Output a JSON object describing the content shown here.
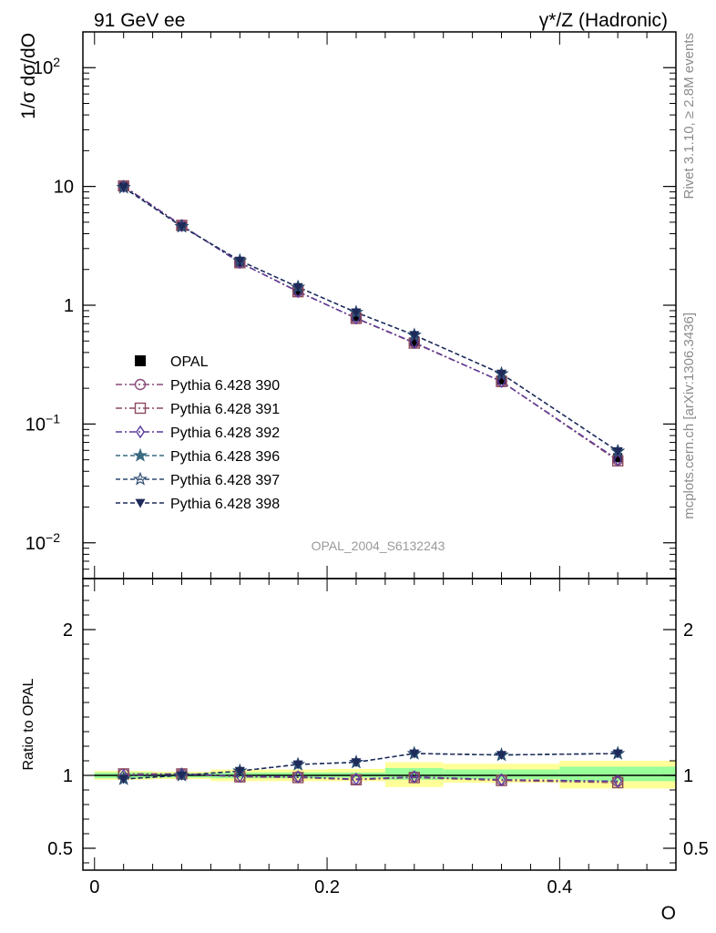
{
  "header": {
    "left": "91 GeV ee",
    "right": "γ*/Z (Hadronic)"
  },
  "side_labels": {
    "rivet": "Rivet 3.1.10, ≥ 2.8M events",
    "mcplots": "mcplots.cern.ch [arXiv:1306.3436]"
  },
  "watermark": "OPAL_2004_S6132243",
  "chart_data": [
    {
      "type": "line",
      "panel": "main",
      "ylabel": "1/σ dσ/dO",
      "yscale": "log",
      "ylim": [
        0.005,
        200
      ],
      "xlim": [
        -0.01,
        0.5
      ],
      "yticks": [
        {
          "value": 0.01,
          "base": "10",
          "exp": "−2"
        },
        {
          "value": 0.1,
          "base": "10",
          "exp": "−1"
        },
        {
          "value": 1,
          "base": "1",
          "exp": ""
        },
        {
          "value": 10,
          "base": "10",
          "exp": ""
        },
        {
          "value": 100,
          "base": "10",
          "exp": "2"
        }
      ],
      "x": [
        0.025,
        0.075,
        0.125,
        0.175,
        0.225,
        0.275,
        0.35,
        0.45
      ],
      "data_series": {
        "name": "OPAL",
        "values": [
          10.0,
          4.6,
          2.3,
          1.32,
          0.8,
          0.49,
          0.235,
          0.052
        ]
      },
      "legend": "left",
      "series": [
        {
          "name": "Pythia 6.428 390",
          "marker": "circle-open",
          "color": "#8b4a7a",
          "dash": "dashdot",
          "values": [
            10.1,
            4.7,
            2.28,
            1.31,
            0.775,
            0.485,
            0.228,
            0.05
          ]
        },
        {
          "name": "Pythia 6.428 391",
          "marker": "square-open",
          "color": "#8b4a5e",
          "dash": "dashdot",
          "values": [
            10.1,
            4.7,
            2.28,
            1.3,
            0.775,
            0.48,
            0.228,
            0.049
          ]
        },
        {
          "name": "Pythia 6.428 392",
          "marker": "diamond-open",
          "color": "#5b3a9e",
          "dash": "dashdot",
          "values": [
            10.0,
            4.68,
            2.29,
            1.3,
            0.78,
            0.485,
            0.228,
            0.05
          ]
        },
        {
          "name": "Pythia 6.428 396",
          "marker": "star-filled",
          "color": "#3a6a80",
          "dash": "dashed",
          "values": [
            9.8,
            4.6,
            2.37,
            1.42,
            0.87,
            0.56,
            0.265,
            0.059
          ]
        },
        {
          "name": "Pythia 6.428 397",
          "marker": "star-open",
          "color": "#2b4a70",
          "dash": "dashed",
          "values": [
            9.8,
            4.6,
            2.37,
            1.42,
            0.87,
            0.56,
            0.265,
            0.059
          ]
        },
        {
          "name": "Pythia 6.428 398",
          "marker": "triangle-down-filled",
          "color": "#1e2a5a",
          "dash": "dashed",
          "values": [
            9.8,
            4.6,
            2.37,
            1.42,
            0.87,
            0.56,
            0.265,
            0.059
          ]
        }
      ]
    },
    {
      "type": "line",
      "panel": "ratio",
      "ylabel": "Ratio to OPAL",
      "xlabel": "O",
      "ylim": [
        0.35,
        2.35
      ],
      "yticks": [
        0.5,
        1,
        2
      ],
      "ytick_labels": [
        "0.5",
        "1",
        "2"
      ],
      "xticks": [
        0,
        0.2,
        0.4
      ],
      "xtick_labels": [
        "0",
        "0.2",
        "0.4"
      ],
      "bands": [
        {
          "x0": 0.0,
          "x1": 0.05,
          "green": [
            0.98,
            1.02
          ],
          "yellow": [
            0.97,
            1.03
          ]
        },
        {
          "x0": 0.05,
          "x1": 0.1,
          "green": [
            0.985,
            1.015
          ],
          "yellow": [
            0.975,
            1.025
          ]
        },
        {
          "x0": 0.1,
          "x1": 0.15,
          "green": [
            0.98,
            1.02
          ],
          "yellow": [
            0.96,
            1.04
          ]
        },
        {
          "x0": 0.15,
          "x1": 0.2,
          "green": [
            0.98,
            1.02
          ],
          "yellow": [
            0.96,
            1.04
          ]
        },
        {
          "x0": 0.2,
          "x1": 0.25,
          "green": [
            0.985,
            1.02
          ],
          "yellow": [
            0.96,
            1.045
          ]
        },
        {
          "x0": 0.25,
          "x1": 0.3,
          "green": [
            0.97,
            1.05
          ],
          "yellow": [
            0.92,
            1.09
          ]
        },
        {
          "x0": 0.3,
          "x1": 0.4,
          "green": [
            0.975,
            1.04
          ],
          "yellow": [
            0.95,
            1.08
          ]
        },
        {
          "x0": 0.4,
          "x1": 0.5,
          "green": [
            0.96,
            1.06
          ],
          "yellow": [
            0.91,
            1.1
          ]
        }
      ],
      "series": [
        {
          "name": "Pythia 6.428 390",
          "marker": "circle-open",
          "color": "#8b4a7a",
          "dash": "dashdot",
          "values": [
            1.01,
            1.01,
            0.99,
            0.99,
            0.97,
            0.99,
            0.97,
            0.96
          ]
        },
        {
          "name": "Pythia 6.428 391",
          "marker": "square-open",
          "color": "#8b4a5e",
          "dash": "dashdot",
          "values": [
            1.01,
            1.01,
            0.99,
            0.985,
            0.97,
            0.985,
            0.965,
            0.95
          ]
        },
        {
          "name": "Pythia 6.428 392",
          "marker": "diamond-open",
          "color": "#5b3a9e",
          "dash": "dashdot",
          "values": [
            1.0,
            1.01,
            0.995,
            0.99,
            0.975,
            0.99,
            0.97,
            0.96
          ]
        },
        {
          "name": "Pythia 6.428 396",
          "marker": "star-filled",
          "color": "#3a6a80",
          "dash": "dashed",
          "values": [
            0.975,
            1.0,
            1.03,
            1.075,
            1.09,
            1.15,
            1.14,
            1.15
          ]
        },
        {
          "name": "Pythia 6.428 397",
          "marker": "star-open",
          "color": "#2b4a70",
          "dash": "dashed",
          "values": [
            0.975,
            1.0,
            1.03,
            1.075,
            1.09,
            1.15,
            1.14,
            1.15
          ]
        },
        {
          "name": "Pythia 6.428 398",
          "marker": "triangle-down-filled",
          "color": "#1e2a5a",
          "dash": "dashed",
          "values": [
            0.975,
            1.0,
            1.03,
            1.075,
            1.09,
            1.15,
            1.14,
            1.15
          ]
        }
      ]
    }
  ]
}
